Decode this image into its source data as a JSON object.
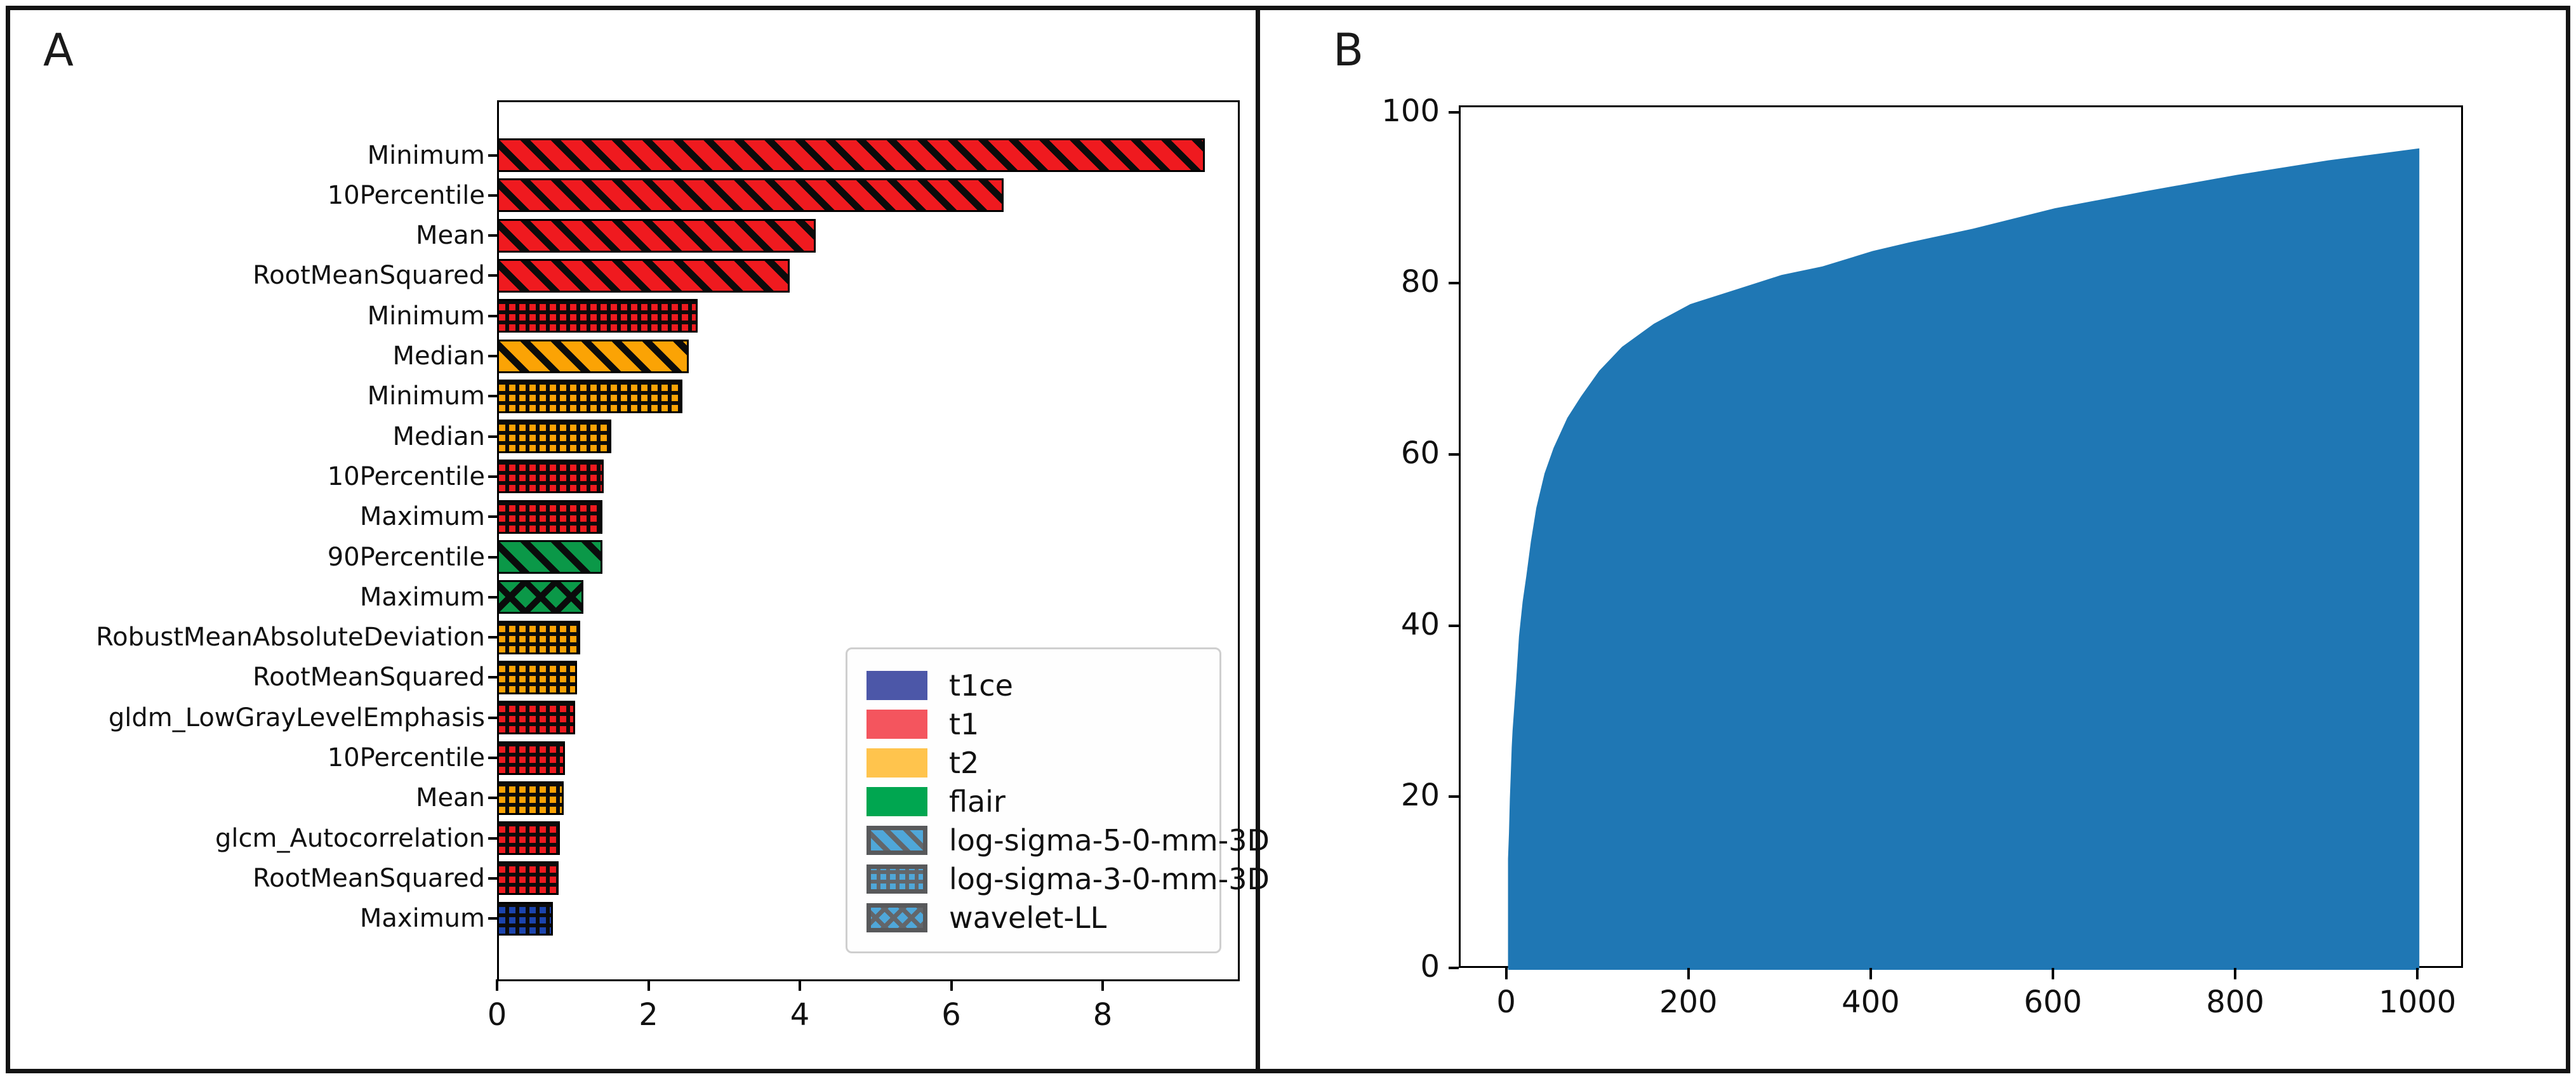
{
  "figure": {
    "background": "#ffffff",
    "border_color": "#131313"
  },
  "panels": [
    {
      "label": "A"
    },
    {
      "label": "B"
    }
  ],
  "chart_data": [
    {
      "type": "bar",
      "orientation": "horizontal",
      "title": "",
      "xlabel": "",
      "ylabel": "",
      "xlim": [
        0,
        9.81
      ],
      "xticks": [
        0,
        2,
        4,
        6,
        8
      ],
      "categories": [
        "Minimum",
        "10Percentile",
        "Mean",
        "RootMeanSquared",
        "Minimum",
        "Median",
        "Minimum",
        "Median",
        "10Percentile",
        "Maximum",
        "90Percentile",
        "Maximum",
        "RobustMeanAbsoluteDeviation",
        "RootMeanSquared",
        "gldm_LowGrayLevelEmphasis",
        "10Percentile",
        "Mean",
        "glcm_Autocorrelation",
        "RootMeanSquared",
        "Maximum"
      ],
      "values": [
        9.35,
        6.69,
        4.21,
        3.87,
        2.65,
        2.53,
        2.45,
        1.51,
        1.41,
        1.39,
        1.39,
        1.14,
        1.1,
        1.06,
        1.03,
        0.9,
        0.88,
        0.83,
        0.81,
        0.74
      ],
      "modalities": [
        "t1",
        "t1",
        "t1",
        "t1",
        "t1",
        "t2",
        "t2",
        "t2",
        "t1",
        "t1",
        "flair",
        "flair",
        "t2",
        "t2",
        "t1",
        "t1",
        "t2",
        "t1",
        "t1",
        "t1ce"
      ],
      "hatches": [
        "diagonal",
        "diagonal",
        "diagonal",
        "diagonal",
        "grid",
        "diagonal",
        "grid",
        "grid",
        "grid",
        "grid",
        "diagonal",
        "cross",
        "grid",
        "grid",
        "grid",
        "grid",
        "grid",
        "grid",
        "grid",
        "grid"
      ],
      "modality_colors": {
        "t1ce": "#1C44AE",
        "t1": "#EF1A1F",
        "t2": "#FBA305",
        "flair": "#0B9848"
      },
      "hatch_line_color": "#0b0b0b",
      "legend": {
        "position": "lower right",
        "hatch_face_color": "#4FA7D9",
        "hatch_line_color": "#63666A",
        "hatch_border_color": "#58595B",
        "items": [
          {
            "label": "t1ce",
            "swatch": "color",
            "color": "#4C57A8"
          },
          {
            "label": "t1",
            "swatch": "color",
            "color": "#F4555E"
          },
          {
            "label": "t2",
            "swatch": "color",
            "color": "#FFC44D"
          },
          {
            "label": "flair",
            "swatch": "color",
            "color": "#00A650"
          },
          {
            "label": "log-sigma-5-0-mm-3D",
            "swatch": "hatch",
            "hatch": "diagonal"
          },
          {
            "label": "log-sigma-3-0-mm-3D",
            "swatch": "hatch",
            "hatch": "grid"
          },
          {
            "label": "wavelet-LL",
            "swatch": "hatch",
            "hatch": "cross"
          }
        ]
      }
    },
    {
      "type": "area",
      "title": "",
      "xlabel": "",
      "ylabel": "",
      "color": "#1F77B4",
      "xlim": [
        -52,
        1050
      ],
      "ylim": [
        0,
        100.8
      ],
      "xticks": [
        0,
        200,
        400,
        600,
        800,
        1000
      ],
      "yticks": [
        0,
        20,
        40,
        60,
        80,
        100
      ],
      "points": [
        [
          0,
          13
        ],
        [
          1,
          16
        ],
        [
          2,
          20
        ],
        [
          3,
          23
        ],
        [
          4,
          26
        ],
        [
          5,
          28
        ],
        [
          7,
          31
        ],
        [
          9,
          34
        ],
        [
          12,
          39
        ],
        [
          16,
          43
        ],
        [
          20,
          46
        ],
        [
          25,
          50
        ],
        [
          31,
          54
        ],
        [
          40,
          58
        ],
        [
          50,
          61
        ],
        [
          65,
          64.5
        ],
        [
          80,
          67
        ],
        [
          100,
          70
        ],
        [
          125,
          72.8
        ],
        [
          160,
          75.5
        ],
        [
          200,
          77.8
        ],
        [
          250,
          79.5
        ],
        [
          300,
          81.2
        ],
        [
          345,
          82.2
        ],
        [
          400,
          84
        ],
        [
          440,
          85
        ],
        [
          510,
          86.6
        ],
        [
          600,
          89
        ],
        [
          700,
          91
        ],
        [
          800,
          92.9
        ],
        [
          900,
          94.6
        ],
        [
          1000,
          96
        ]
      ]
    }
  ]
}
